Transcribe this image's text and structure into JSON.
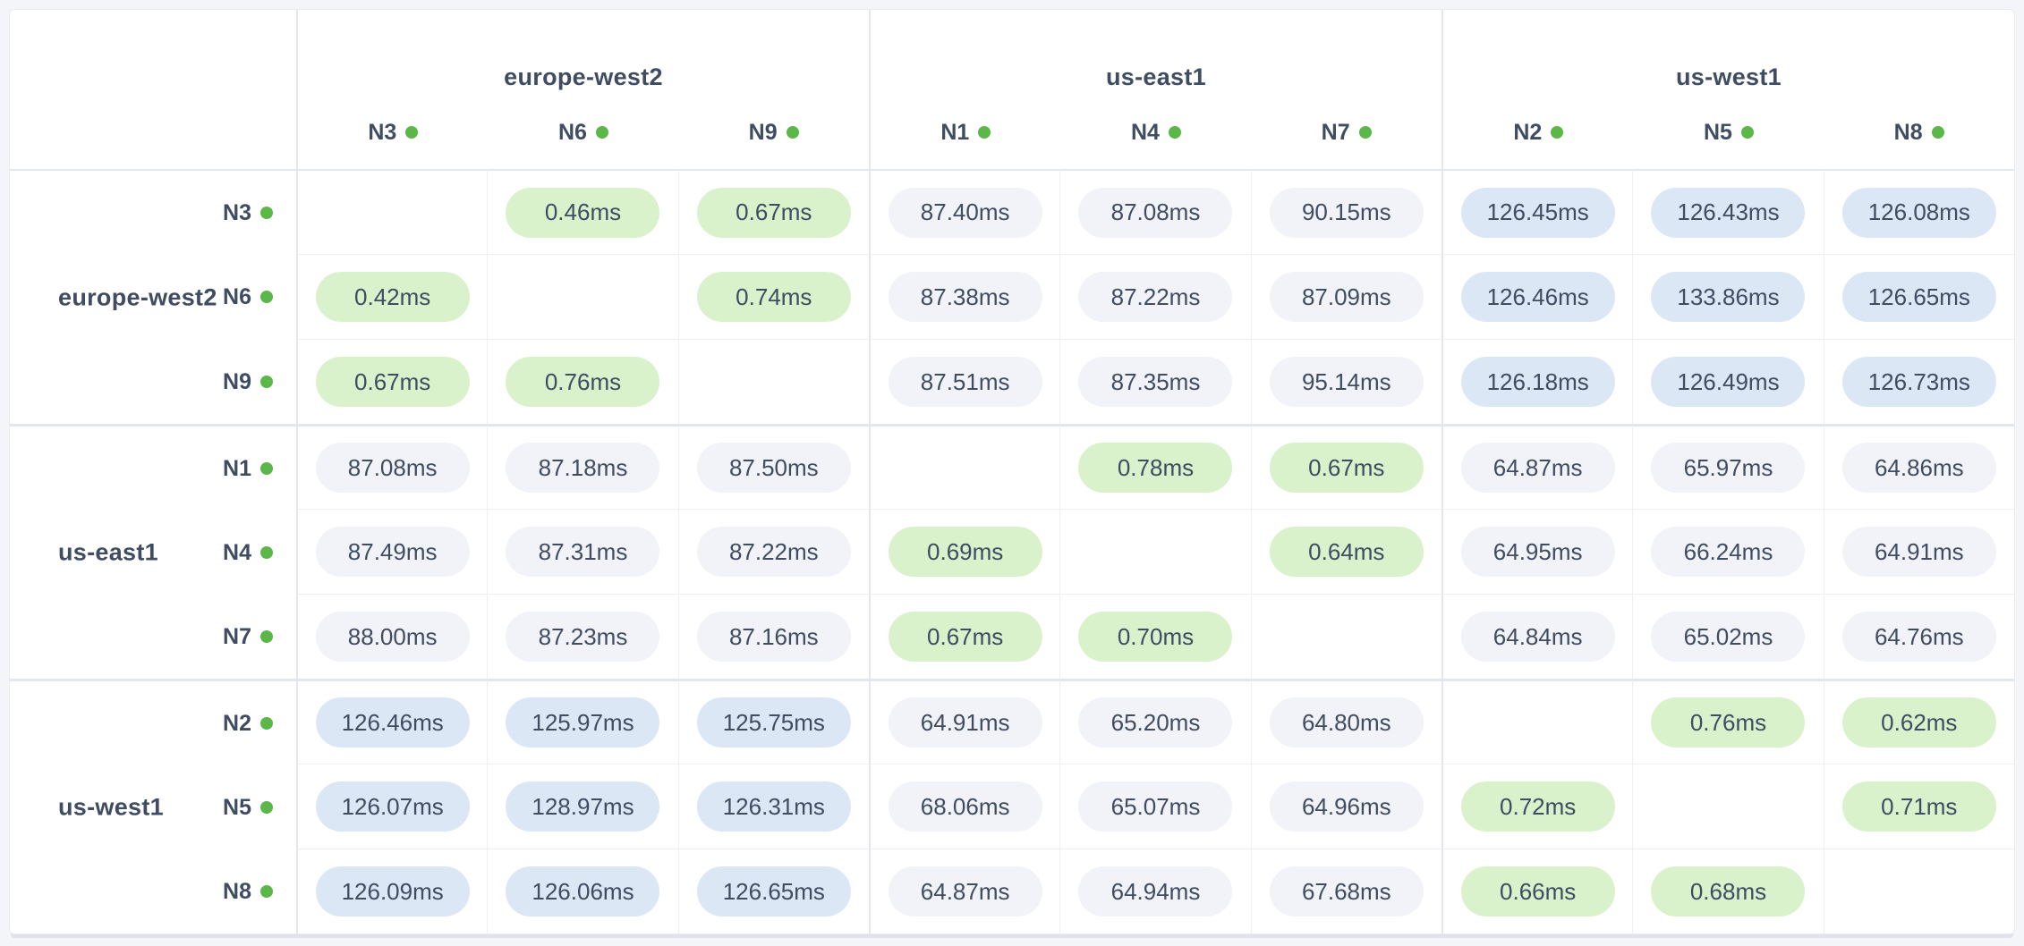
{
  "colors": {
    "page_bg": "#f3f5f9",
    "card_bg": "#ffffff",
    "text": "#3f4c61",
    "grid_line": "#edeff5",
    "group_line": "#e2e6ee",
    "node_status_dot": "#5cb749",
    "latency_low_bg": "#d9f2cc",
    "latency_mid_bg": "#f1f3f8",
    "latency_high_bg": "#dbe7f5"
  },
  "chart_data": {
    "type": "heatmap",
    "unit": "ms",
    "tier_thresholds": {
      "mid_min": 10,
      "high_min": 110
    },
    "col_groups": [
      {
        "region": "europe-west2",
        "nodes": [
          "N3",
          "N6",
          "N9"
        ]
      },
      {
        "region": "us-east1",
        "nodes": [
          "N1",
          "N4",
          "N7"
        ]
      },
      {
        "region": "us-west1",
        "nodes": [
          "N2",
          "N5",
          "N8"
        ]
      }
    ],
    "row_groups": [
      {
        "region": "europe-west2",
        "nodes": [
          "N3",
          "N6",
          "N9"
        ]
      },
      {
        "region": "us-east1",
        "nodes": [
          "N1",
          "N4",
          "N7"
        ]
      },
      {
        "region": "us-west1",
        "nodes": [
          "N2",
          "N5",
          "N8"
        ]
      }
    ],
    "col_nodes": [
      "N3",
      "N6",
      "N9",
      "N1",
      "N4",
      "N7",
      "N2",
      "N5",
      "N8"
    ],
    "row_nodes": [
      "N3",
      "N6",
      "N9",
      "N1",
      "N4",
      "N7",
      "N2",
      "N5",
      "N8"
    ],
    "values": [
      [
        null,
        0.46,
        0.67,
        87.4,
        87.08,
        90.15,
        126.45,
        126.43,
        126.08
      ],
      [
        0.42,
        null,
        0.74,
        87.38,
        87.22,
        87.09,
        126.46,
        133.86,
        126.65
      ],
      [
        0.67,
        0.76,
        null,
        87.51,
        87.35,
        95.14,
        126.18,
        126.49,
        126.73
      ],
      [
        87.08,
        87.18,
        87.5,
        null,
        0.78,
        0.67,
        64.87,
        65.97,
        64.86
      ],
      [
        87.49,
        87.31,
        87.22,
        0.69,
        null,
        0.64,
        64.95,
        66.24,
        64.91
      ],
      [
        88.0,
        87.23,
        87.16,
        0.67,
        0.7,
        null,
        64.84,
        65.02,
        64.76
      ],
      [
        126.46,
        125.97,
        125.75,
        64.91,
        65.2,
        64.8,
        null,
        0.76,
        0.62
      ],
      [
        126.07,
        128.97,
        126.31,
        68.06,
        65.07,
        64.96,
        0.72,
        null,
        0.71
      ],
      [
        126.09,
        126.06,
        126.65,
        64.87,
        64.94,
        67.68,
        0.66,
        0.68,
        null
      ]
    ]
  }
}
